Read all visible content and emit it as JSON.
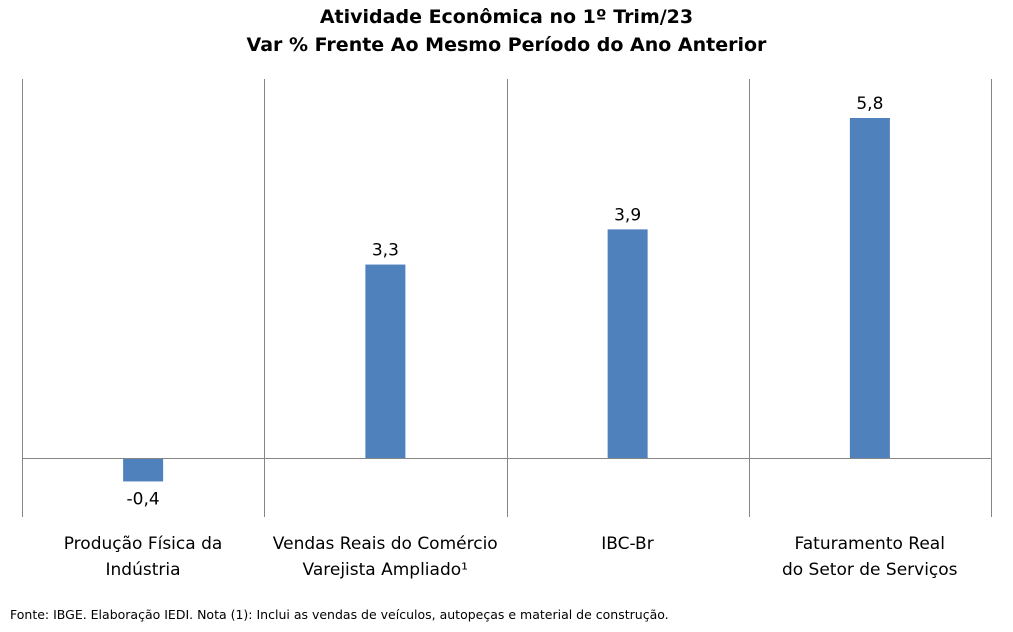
{
  "chart_data": {
    "type": "bar",
    "title": "Atividade Econômica no 1º Trim/23",
    "subtitle": "Var % Frente Ao Mesmo Período do Ano Anterior",
    "categories": [
      {
        "line1": "Produção Física da",
        "line2": "Indústria"
      },
      {
        "line1": "Vendas Reais do Comércio",
        "line2": "Varejista Ampliado¹"
      },
      {
        "line1": "IBC-Br",
        "line2": ""
      },
      {
        "line1": "Faturamento Real",
        "line2": "do Setor de Serviços"
      }
    ],
    "values": [
      -0.4,
      3.3,
      3.9,
      5.8
    ],
    "value_labels": [
      "-0,4",
      "3,3",
      "3,9",
      "5,8"
    ],
    "ylim": [
      -1.0,
      6.5
    ],
    "bar_color": "#4f81bd",
    "grid": false
  },
  "source_note": "Fonte: IBGE. Elaboração IEDI. Nota (1): Inclui as vendas de veículos, autopeças e material de construção."
}
